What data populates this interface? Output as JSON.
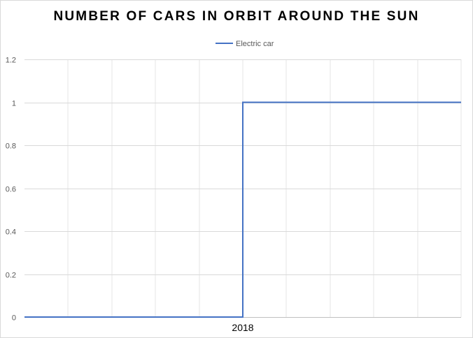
{
  "chart_data": {
    "type": "line",
    "title": "NUMBER OF CARS IN ORBIT AROUND THE SUN",
    "xlabel": "",
    "ylabel": "",
    "x_tick_labels": [
      "2018"
    ],
    "y_ticks": [
      0,
      0.2,
      0.4,
      0.6,
      0.8,
      1,
      1.2
    ],
    "y_tick_labels": [
      "0",
      "0.2",
      "0.4",
      "0.6",
      "0.8",
      "1",
      "1.2"
    ],
    "ylim": [
      0,
      1.2
    ],
    "grid": true,
    "legend_position": "top",
    "series": [
      {
        "name": "Electric car",
        "color": "#4472c4",
        "step": "at 2018",
        "values_before": 0,
        "values_after": 1
      }
    ]
  }
}
